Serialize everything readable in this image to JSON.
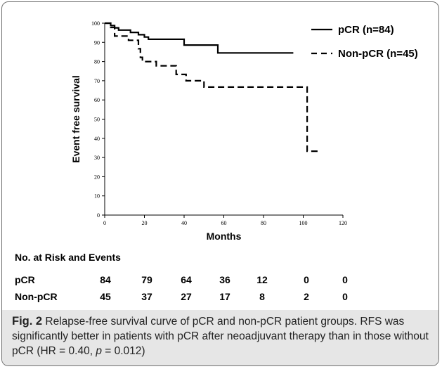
{
  "chart_data": {
    "type": "line",
    "subtype": "kaplan-meier step",
    "xlabel": "Months",
    "ylabel": "Event free survival",
    "xlim": [
      0,
      120
    ],
    "ylim": [
      0,
      100
    ],
    "xticks": [
      0,
      20,
      40,
      60,
      80,
      100,
      120
    ],
    "yticks": [
      0,
      10,
      20,
      30,
      40,
      50,
      60,
      70,
      80,
      90,
      100
    ],
    "grid": false,
    "legend": "top-right",
    "series": [
      {
        "name": "pCR (n=84)",
        "style": "solid",
        "points": [
          [
            0,
            100
          ],
          [
            3,
            100
          ],
          [
            3,
            98.8
          ],
          [
            5,
            98.8
          ],
          [
            5,
            97.6
          ],
          [
            7,
            97.6
          ],
          [
            7,
            96.4
          ],
          [
            13,
            96.4
          ],
          [
            13,
            95.2
          ],
          [
            17,
            95.2
          ],
          [
            17,
            94
          ],
          [
            20,
            94
          ],
          [
            20,
            92.8
          ],
          [
            22,
            92.8
          ],
          [
            22,
            91.6
          ],
          [
            40,
            91.6
          ],
          [
            40,
            88.6
          ],
          [
            57,
            88.6
          ],
          [
            57,
            84.5
          ],
          [
            95,
            84.5
          ]
        ]
      },
      {
        "name": "Non-pCR (n=45)",
        "style": "dashed",
        "points": [
          [
            0,
            100
          ],
          [
            3,
            100
          ],
          [
            3,
            97.8
          ],
          [
            5,
            97.8
          ],
          [
            5,
            93.3
          ],
          [
            12,
            93.3
          ],
          [
            12,
            91.1
          ],
          [
            17,
            91.1
          ],
          [
            17,
            86.7
          ],
          [
            18,
            86.7
          ],
          [
            18,
            82.2
          ],
          [
            19,
            82.2
          ],
          [
            19,
            80
          ],
          [
            26,
            80
          ],
          [
            26,
            77.8
          ],
          [
            36,
            77.8
          ],
          [
            36,
            73.3
          ],
          [
            41,
            73.3
          ],
          [
            41,
            70
          ],
          [
            50,
            70
          ],
          [
            50,
            66.7
          ],
          [
            102,
            66.7
          ],
          [
            102,
            33.3
          ],
          [
            108,
            33.3
          ]
        ]
      }
    ]
  },
  "risk_table": {
    "title": "No. at Risk and Events",
    "rows": [
      {
        "label": "pCR",
        "values": [
          "84",
          "79",
          "64",
          "36",
          "12",
          "0",
          "0"
        ]
      },
      {
        "label": "Non-pCR",
        "values": [
          "45",
          "37",
          "27",
          "17",
          "8",
          "2",
          "0"
        ]
      }
    ]
  },
  "caption": {
    "fig_label": "Fig. 2",
    "text_1": " Relapse-free survival curve of pCR and non-pCR patient groups. RFS was significantly better in patients with pCR after neoadjuvant therapy than in those without pCR (HR = 0.40, ",
    "p_symbol": "p",
    "text_2": " = 0.012)"
  }
}
